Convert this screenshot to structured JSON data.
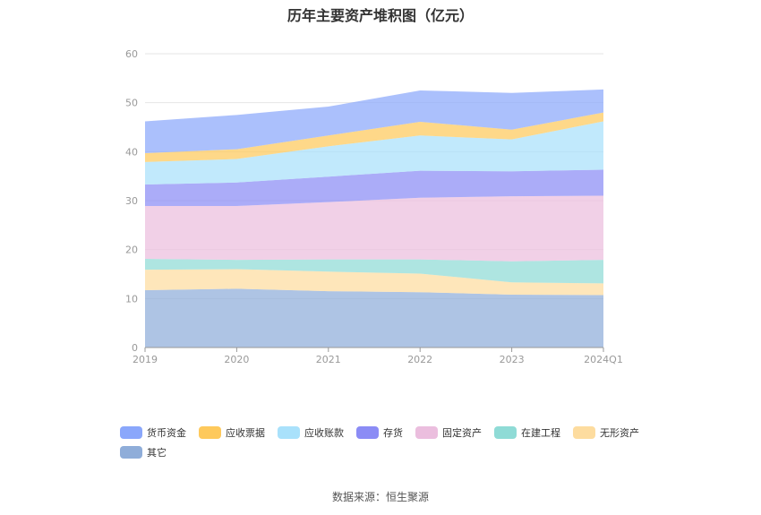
{
  "title": "历年主要资产堆积图（亿元）",
  "source": "数据来源：恒生聚源",
  "chart_data": {
    "type": "area",
    "stacked": true,
    "categories": [
      "2019",
      "2020",
      "2021",
      "2022",
      "2023",
      "2024Q1"
    ],
    "ylim": [
      0,
      60
    ],
    "yticks": [
      0,
      10,
      20,
      30,
      40,
      50,
      60
    ],
    "grid": true,
    "legend_position": "bottom",
    "series": [
      {
        "name": "其它",
        "color": "#8fadd9",
        "values": [
          11.7,
          12.0,
          11.5,
          11.3,
          10.8,
          10.7
        ]
      },
      {
        "name": "无形资产",
        "color": "#fddc9f",
        "values": [
          4.2,
          4.0,
          4.0,
          3.8,
          2.5,
          2.4
        ]
      },
      {
        "name": "在建工程",
        "color": "#8fdbd6",
        "values": [
          2.2,
          1.9,
          2.5,
          2.9,
          4.3,
          4.8
        ]
      },
      {
        "name": "固定资产",
        "color": "#ebbede",
        "values": [
          10.8,
          11.0,
          11.7,
          12.6,
          13.3,
          13.1
        ]
      },
      {
        "name": "存货",
        "color": "#8b8cf5",
        "values": [
          4.4,
          4.8,
          5.2,
          5.5,
          5.1,
          5.3
        ]
      },
      {
        "name": "应收账款",
        "color": "#a9e1fb",
        "values": [
          4.6,
          4.8,
          6.2,
          7.2,
          6.5,
          9.9
        ]
      },
      {
        "name": "应收票据",
        "color": "#fec95c",
        "values": [
          1.8,
          2.0,
          2.2,
          2.8,
          2.0,
          1.8
        ]
      },
      {
        "name": "货币资金",
        "color": "#8aa7fb",
        "values": [
          6.5,
          7.0,
          5.9,
          6.4,
          7.5,
          4.7
        ]
      }
    ],
    "legend_order": [
      "货币资金",
      "应收票据",
      "应收账款",
      "存货",
      "固定资产",
      "在建工程",
      "无形资产",
      "其它"
    ]
  }
}
